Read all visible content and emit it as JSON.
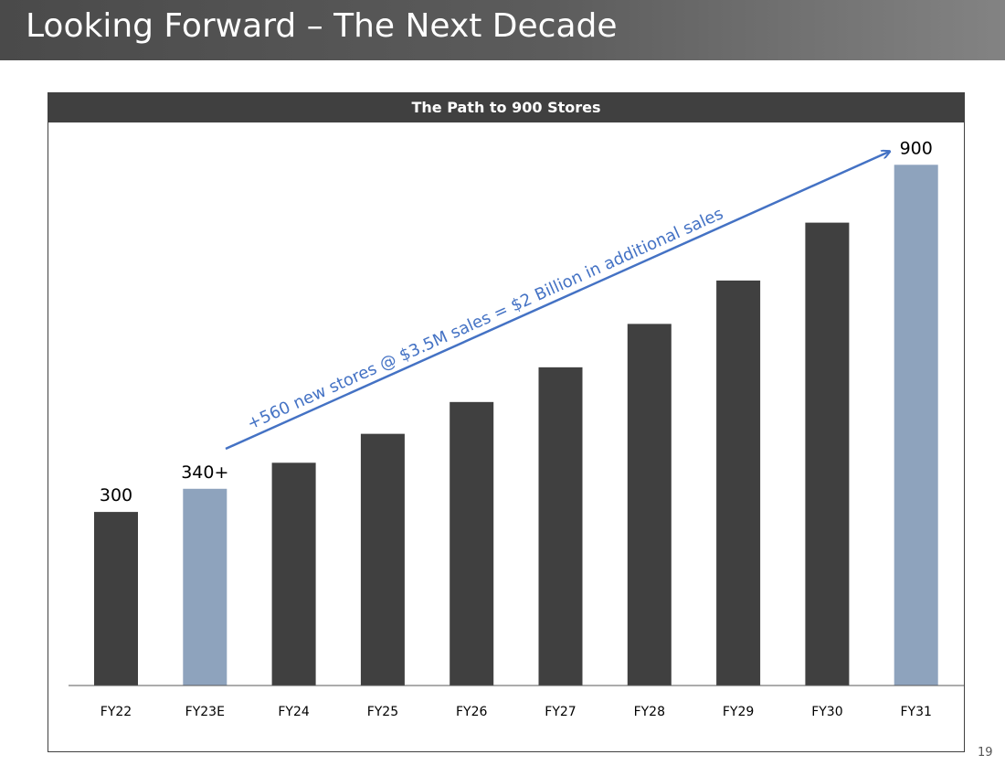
{
  "slide": {
    "title": "Looking Forward – The Next Decade",
    "page_number": "19"
  },
  "colors": {
    "title_bar": "#4a4a4a",
    "bar_dark": "#404040",
    "bar_highlight": "#8ea3bd",
    "annotation": "#4472c4"
  },
  "chart_data": {
    "type": "bar",
    "title": "The Path to 900 Stores",
    "xlabel": "",
    "ylabel": "",
    "ylim": [
      0,
      1000
    ],
    "grid": false,
    "categories": [
      "FY22",
      "FY23E",
      "FY24",
      "FY25",
      "FY26",
      "FY27",
      "FY28",
      "FY29",
      "FY30",
      "FY31"
    ],
    "values": [
      300,
      340,
      385,
      435,
      490,
      550,
      625,
      700,
      800,
      900
    ],
    "highlight": [
      false,
      true,
      false,
      false,
      false,
      false,
      false,
      false,
      false,
      true
    ],
    "data_labels": [
      "300",
      "340+",
      "",
      "",
      "",
      "",
      "",
      "",
      "",
      "900"
    ],
    "annotation": "+560 new stores @ $3.5M sales = $2 Billion in additional sales"
  }
}
